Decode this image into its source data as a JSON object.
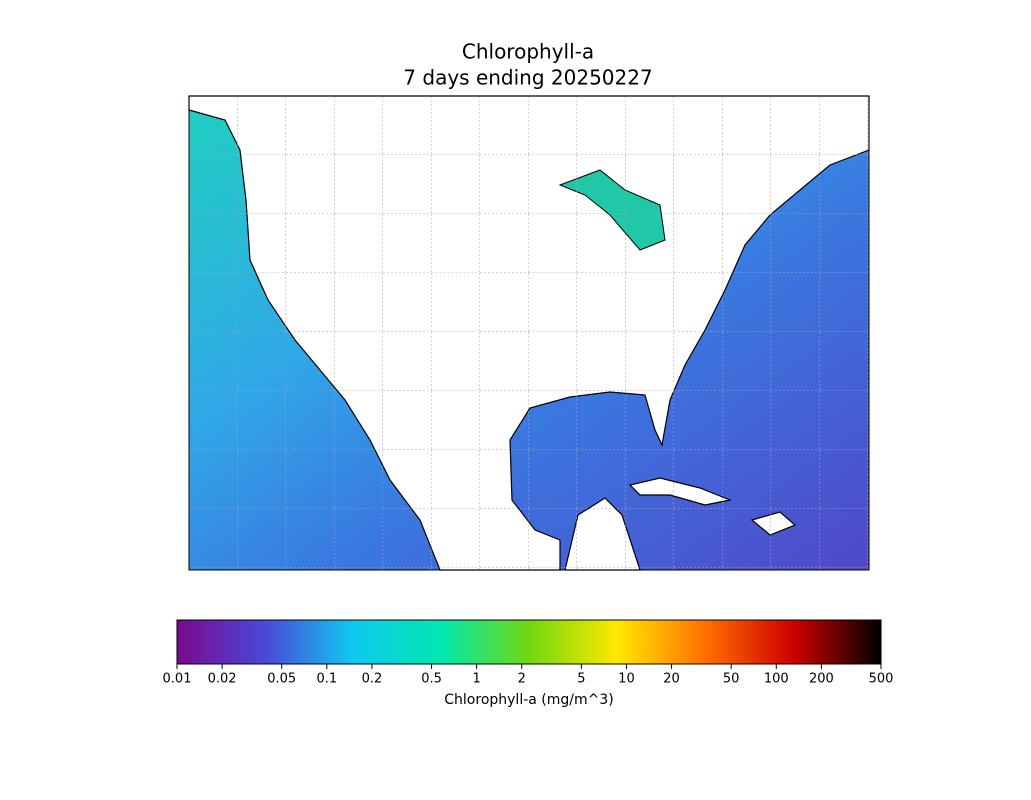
{
  "title": [
    "Chlorophyll-a",
    "7 days ending 20250227"
  ],
  "colorbar": {
    "label": "Chlorophyll-a (mg/m^3)",
    "log": true,
    "lim": [
      0.01,
      500
    ],
    "ticks": [
      0.01,
      0.02,
      0.05,
      0.1,
      0.2,
      0.5,
      1,
      2,
      5,
      10,
      20,
      50,
      100,
      200,
      500
    ],
    "colors": [
      "#7a0a8c",
      "#4a48d8",
      "#10c8f0",
      "#00e8b0",
      "#70d810",
      "#ffe800",
      "#ff7000",
      "#d00000",
      "#000000"
    ]
  }
}
